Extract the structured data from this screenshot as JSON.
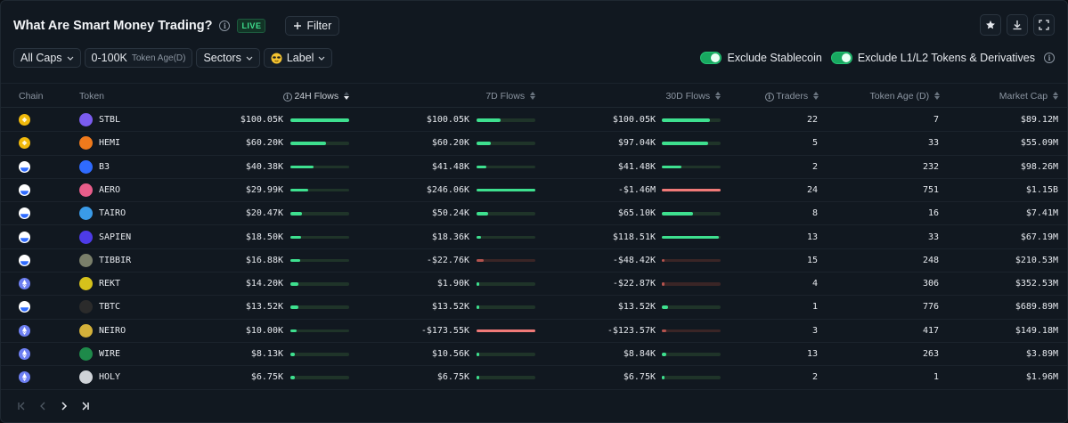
{
  "header": {
    "title": "What Are Smart Money Trading?",
    "live_badge": "LIVE",
    "filter_label": "Filter"
  },
  "toolbar": {
    "caps": "All Caps",
    "age_range": "0-100K",
    "age_label": "Token Age(D)",
    "sectors": "Sectors",
    "label": "Label",
    "exclude_stablecoin": "Exclude Stablecoin",
    "exclude_l1l2": "Exclude L1/L2 Tokens & Derivatives"
  },
  "columns": {
    "chain": "Chain",
    "token": "Token",
    "flows24h": "24H Flows",
    "flows7d": "7D Flows",
    "flows30d": "30D Flows",
    "traders": "Traders",
    "age": "Token Age (D)",
    "mcap": "Market Cap"
  },
  "colors": {
    "positive": "#3ee08f",
    "negative": "#f07a78",
    "negative_dark": "#b4534e",
    "bsc": "#f0b90b",
    "base": "#2f6bff",
    "eth": "#6d7ff2"
  },
  "rows": [
    {
      "chain": "bsc",
      "token": "STBL",
      "f24": "$100.05K",
      "b24": 1.0,
      "f7": "$100.05K",
      "b7": 0.41,
      "f30": "$100.05K",
      "b30": 0.82,
      "traders": "22",
      "age": "7",
      "mcap": "$89.12M"
    },
    {
      "chain": "bsc",
      "token": "HEMI",
      "f24": "$60.20K",
      "b24": 0.6,
      "f7": "$60.20K",
      "b7": 0.24,
      "f30": "$97.04K",
      "b30": 0.79,
      "traders": "5",
      "age": "33",
      "mcap": "$55.09M"
    },
    {
      "chain": "base",
      "token": "B3",
      "f24": "$40.38K",
      "b24": 0.4,
      "f7": "$41.48K",
      "b7": 0.17,
      "f30": "$41.48K",
      "b30": 0.34,
      "traders": "2",
      "age": "232",
      "mcap": "$98.26M"
    },
    {
      "chain": "base",
      "token": "AERO",
      "f24": "$29.99K",
      "b24": 0.3,
      "f7": "$246.06K",
      "b7": 1.0,
      "f30": "-$1.46M",
      "b30": -1.0,
      "traders": "24",
      "age": "751",
      "mcap": "$1.15B"
    },
    {
      "chain": "base",
      "token": "TAIRO",
      "f24": "$20.47K",
      "b24": 0.2,
      "f7": "$50.24K",
      "b7": 0.2,
      "f30": "$65.10K",
      "b30": 0.53,
      "traders": "8",
      "age": "16",
      "mcap": "$7.41M"
    },
    {
      "chain": "base",
      "token": "SAPIEN",
      "f24": "$18.50K",
      "b24": 0.18,
      "f7": "$18.36K",
      "b7": 0.07,
      "f30": "$118.51K",
      "b30": 0.97,
      "traders": "13",
      "age": "33",
      "mcap": "$67.19M"
    },
    {
      "chain": "base",
      "token": "TIBBIR",
      "f24": "$16.88K",
      "b24": 0.17,
      "f7": "-$22.76K",
      "b7": -0.12,
      "f30": "-$48.42K",
      "b30": -0.03,
      "traders": "15",
      "age": "248",
      "mcap": "$210.53M"
    },
    {
      "chain": "eth",
      "token": "REKT",
      "f24": "$14.20K",
      "b24": 0.14,
      "f7": "$1.90K",
      "b7": 0.01,
      "f30": "-$22.87K",
      "b30": -0.02,
      "traders": "4",
      "age": "306",
      "mcap": "$352.53M"
    },
    {
      "chain": "base",
      "token": "TBTC",
      "f24": "$13.52K",
      "b24": 0.13,
      "f7": "$13.52K",
      "b7": 0.05,
      "f30": "$13.52K",
      "b30": 0.11,
      "traders": "1",
      "age": "776",
      "mcap": "$689.89M"
    },
    {
      "chain": "eth",
      "token": "NEIRO",
      "f24": "$10.00K",
      "b24": 0.1,
      "f7": "-$173.55K",
      "b7": -1.0,
      "f30": "-$123.57K",
      "b30": -0.08,
      "traders": "3",
      "age": "417",
      "mcap": "$149.18M"
    },
    {
      "chain": "eth",
      "token": "WIRE",
      "f24": "$8.13K",
      "b24": 0.08,
      "f7": "$10.56K",
      "b7": 0.04,
      "f30": "$8.84K",
      "b30": 0.07,
      "traders": "13",
      "age": "263",
      "mcap": "$3.89M"
    },
    {
      "chain": "eth",
      "token": "HOLY",
      "f24": "$6.75K",
      "b24": 0.07,
      "f7": "$6.75K",
      "b7": 0.03,
      "f30": "$6.75K",
      "b30": 0.05,
      "traders": "2",
      "age": "1",
      "mcap": "$1.96M"
    }
  ]
}
